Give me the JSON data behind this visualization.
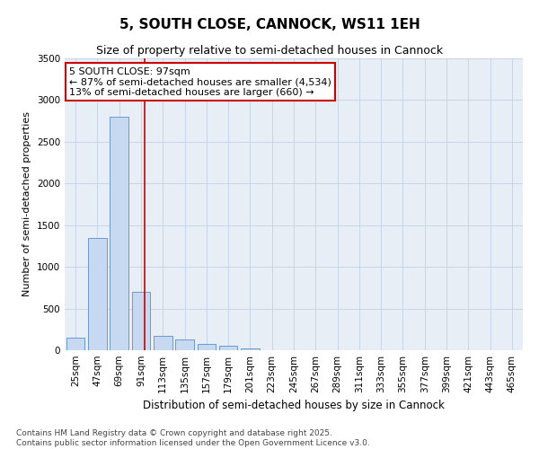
{
  "title": "5, SOUTH CLOSE, CANNOCK, WS11 1EH",
  "subtitle": "Size of property relative to semi-detached houses in Cannock",
  "xlabel": "Distribution of semi-detached houses by size in Cannock",
  "ylabel": "Number of semi-detached properties",
  "categories": [
    "25sqm",
    "47sqm",
    "69sqm",
    "91sqm",
    "113sqm",
    "135sqm",
    "157sqm",
    "179sqm",
    "201sqm",
    "223sqm",
    "245sqm",
    "267sqm",
    "289sqm",
    "311sqm",
    "333sqm",
    "355sqm",
    "377sqm",
    "399sqm",
    "421sqm",
    "443sqm",
    "465sqm"
  ],
  "values": [
    150,
    1350,
    2800,
    700,
    175,
    125,
    75,
    50,
    20,
    5,
    2,
    1,
    0,
    0,
    0,
    0,
    0,
    0,
    0,
    0,
    0
  ],
  "bar_color": "#c6d9f0",
  "bar_edge_color": "#5b8cc8",
  "grid_color": "#c8d4e8",
  "bg_color": "#e8eef6",
  "vline_color": "#cc0000",
  "vline_pos": 3.15,
  "annotation_line1": "5 SOUTH CLOSE: 97sqm",
  "annotation_line2": "← 87% of semi-detached houses are smaller (4,534)",
  "annotation_line3": "13% of semi-detached houses are larger (660) →",
  "annotation_box_color": "#cc0000",
  "ylim": [
    0,
    3500
  ],
  "yticks": [
    0,
    500,
    1000,
    1500,
    2000,
    2500,
    3000,
    3500
  ],
  "footer_line1": "Contains HM Land Registry data © Crown copyright and database right 2025.",
  "footer_line2": "Contains public sector information licensed under the Open Government Licence v3.0.",
  "title_fontsize": 11,
  "subtitle_fontsize": 9,
  "tick_fontsize": 7.5,
  "ylabel_fontsize": 8,
  "xlabel_fontsize": 8.5,
  "annot_fontsize": 8,
  "footer_fontsize": 6.5
}
